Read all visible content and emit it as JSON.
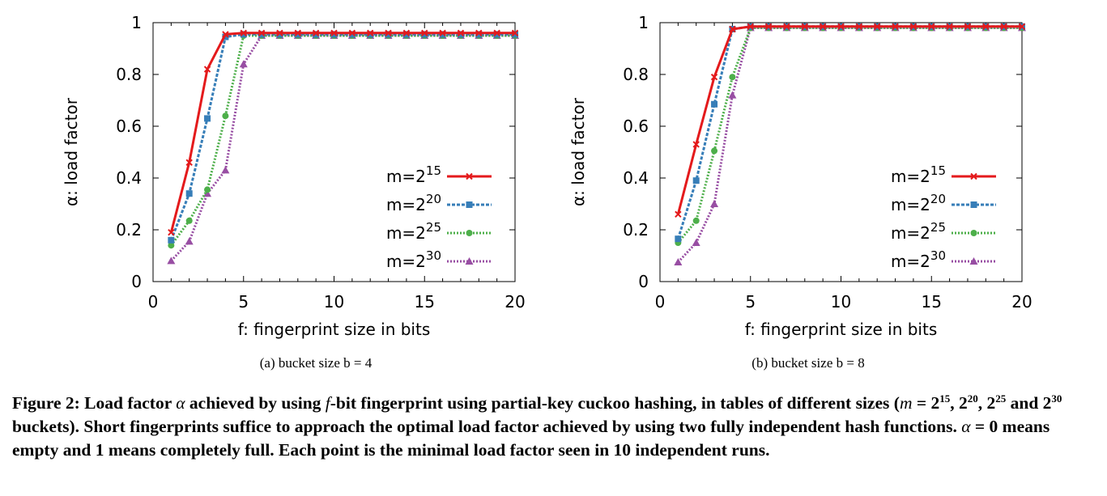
{
  "chart_data": [
    {
      "type": "line",
      "subcaption": "(a)  bucket size b = 4",
      "xlabel": "f: fingerprint size in bits",
      "ylabel": "α: load factor",
      "xlim": [
        0,
        20
      ],
      "ylim": [
        0,
        1
      ],
      "xticks": [
        "0",
        "5",
        "10",
        "15",
        "20"
      ],
      "yticks": [
        "0",
        "0.2",
        "0.4",
        "0.6",
        "0.8",
        "1"
      ],
      "legend_position": "right",
      "x": [
        1,
        2,
        3,
        4,
        5,
        6,
        7,
        8,
        9,
        10,
        11,
        12,
        13,
        14,
        15,
        16,
        17,
        18,
        19,
        20
      ],
      "series": [
        {
          "name": "m=2^15",
          "label_base": "m=2",
          "label_exp": "15",
          "color": "#e41a1c",
          "style": "solid",
          "marker": "x",
          "values": [
            0.19,
            0.46,
            0.82,
            0.955,
            0.96,
            0.96,
            0.96,
            0.96,
            0.96,
            0.96,
            0.96,
            0.96,
            0.96,
            0.96,
            0.96,
            0.96,
            0.96,
            0.96,
            0.96,
            0.96
          ]
        },
        {
          "name": "m=2^20",
          "label_base": "m=2",
          "label_exp": "20",
          "color": "#377eb8",
          "style": "dashed",
          "marker": "square",
          "values": [
            0.16,
            0.34,
            0.63,
            0.945,
            0.955,
            0.955,
            0.955,
            0.955,
            0.955,
            0.955,
            0.955,
            0.955,
            0.955,
            0.955,
            0.955,
            0.955,
            0.955,
            0.955,
            0.955,
            0.955
          ]
        },
        {
          "name": "m=2^25",
          "label_base": "m=2",
          "label_exp": "25",
          "color": "#4daf4a",
          "style": "dotted",
          "marker": "circle",
          "values": [
            0.14,
            0.235,
            0.355,
            0.64,
            0.95,
            0.95,
            0.95,
            0.95,
            0.95,
            0.95,
            0.95,
            0.95,
            0.95,
            0.95,
            0.95,
            0.95,
            0.95,
            0.95,
            0.95,
            0.95
          ]
        },
        {
          "name": "m=2^30",
          "label_base": "m=2",
          "label_exp": "30",
          "color": "#984ea3",
          "style": "dotted",
          "marker": "triangle",
          "values": [
            0.08,
            0.155,
            0.34,
            0.43,
            0.84,
            0.95,
            0.95,
            0.95,
            0.95,
            0.95,
            0.95,
            0.95,
            0.95,
            0.95,
            0.95,
            0.95,
            0.95,
            0.95,
            0.95,
            0.95
          ]
        }
      ]
    },
    {
      "type": "line",
      "subcaption": "(b)  bucket size b = 8",
      "xlabel": "f: fingerprint size in bits",
      "ylabel": "α: load factor",
      "xlim": [
        0,
        20
      ],
      "ylim": [
        0,
        1
      ],
      "xticks": [
        "0",
        "5",
        "10",
        "15",
        "20"
      ],
      "yticks": [
        "0",
        "0.2",
        "0.4",
        "0.6",
        "0.8",
        "1"
      ],
      "legend_position": "right",
      "x": [
        1,
        2,
        3,
        4,
        5,
        6,
        7,
        8,
        9,
        10,
        11,
        12,
        13,
        14,
        15,
        16,
        17,
        18,
        19,
        20
      ],
      "series": [
        {
          "name": "m=2^15",
          "label_base": "m=2",
          "label_exp": "15",
          "color": "#e41a1c",
          "style": "solid",
          "marker": "x",
          "values": [
            0.26,
            0.53,
            0.79,
            0.975,
            0.985,
            0.985,
            0.985,
            0.985,
            0.985,
            0.985,
            0.985,
            0.985,
            0.985,
            0.985,
            0.985,
            0.985,
            0.985,
            0.985,
            0.985,
            0.985
          ]
        },
        {
          "name": "m=2^20",
          "label_base": "m=2",
          "label_exp": "20",
          "color": "#377eb8",
          "style": "dashed",
          "marker": "square",
          "values": [
            0.165,
            0.39,
            0.685,
            0.975,
            0.985,
            0.985,
            0.985,
            0.985,
            0.985,
            0.985,
            0.985,
            0.985,
            0.985,
            0.985,
            0.985,
            0.985,
            0.985,
            0.985,
            0.985,
            0.985
          ]
        },
        {
          "name": "m=2^25",
          "label_base": "m=2",
          "label_exp": "25",
          "color": "#4daf4a",
          "style": "dotted",
          "marker": "circle",
          "values": [
            0.15,
            0.235,
            0.505,
            0.79,
            0.98,
            0.98,
            0.98,
            0.98,
            0.98,
            0.98,
            0.98,
            0.98,
            0.98,
            0.98,
            0.98,
            0.98,
            0.98,
            0.98,
            0.98,
            0.98
          ]
        },
        {
          "name": "m=2^30",
          "label_base": "m=2",
          "label_exp": "30",
          "color": "#984ea3",
          "style": "dotted",
          "marker": "triangle",
          "values": [
            0.075,
            0.15,
            0.3,
            0.72,
            0.98,
            0.98,
            0.98,
            0.98,
            0.98,
            0.98,
            0.98,
            0.98,
            0.98,
            0.98,
            0.98,
            0.98,
            0.98,
            0.98,
            0.98,
            0.98
          ]
        }
      ]
    }
  ],
  "caption": {
    "label": "Figure 2:",
    "line1_a": "Load factor",
    "alpha": "α",
    "line1_b": "achieved by using",
    "f": "f",
    "line1_c": "-bit fingerprint using partial-key cuckoo hashing, in tables of different sizes",
    "line2_a": "(",
    "m": "m",
    "line2_b": "= 2",
    "e1": "15",
    "c1": ", 2",
    "e2": "20",
    "c2": ", 2",
    "e3": "25",
    "line2_and": " and 2",
    "e4": "30",
    "line2_c": " buckets). Short fingerprints suffice to approach the optimal load factor achieved by using two fully independent hash functions.",
    "alpha2": "α",
    "line3_a": "= 0 means empty and 1 means completely full. Each point is the minimal load factor seen in 10 independent runs."
  }
}
